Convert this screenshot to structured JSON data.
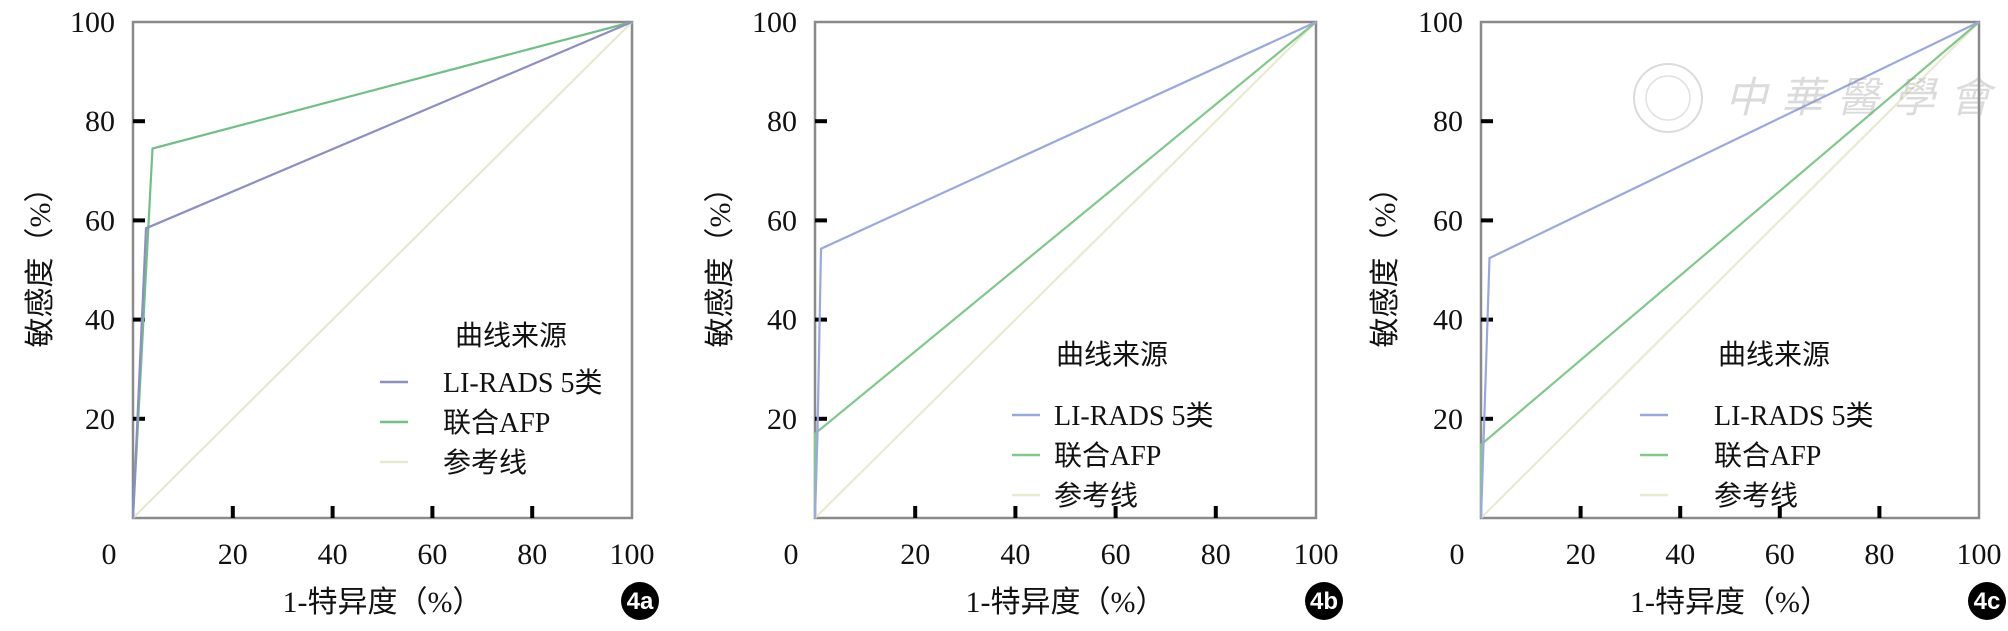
{
  "chart_data": [
    {
      "type": "line",
      "panel_label": "4a",
      "xlabel": "1-特异度（%）",
      "ylabel": "敏感度（%）",
      "xlim": [
        0,
        100
      ],
      "ylim": [
        0,
        100
      ],
      "xticks": [
        "0",
        "20",
        "40",
        "60",
        "80",
        "100"
      ],
      "yticks": [
        "20",
        "40",
        "60",
        "80",
        "100"
      ],
      "grid": false,
      "legend": {
        "title": "曲线来源",
        "placement": "bottom-right"
      },
      "series": [
        {
          "name": "LI-RADS 5类",
          "color": "#8c8fc4",
          "points": [
            [
              0,
              0
            ],
            [
              2.6,
              58.4
            ],
            [
              100,
              100
            ]
          ]
        },
        {
          "name": "联合AFP",
          "color": "#6fbf86",
          "points": [
            [
              0,
              0
            ],
            [
              3.9,
              74.5
            ],
            [
              100,
              100
            ]
          ]
        },
        {
          "name": "参考线",
          "color": "#e6e9cf",
          "points": [
            [
              0,
              0
            ],
            [
              100,
              100
            ]
          ]
        }
      ]
    },
    {
      "type": "line",
      "panel_label": "4b",
      "xlabel": "1-特异度（%）",
      "ylabel": "敏感度（%）",
      "xlim": [
        0,
        100
      ],
      "ylim": [
        0,
        100
      ],
      "xticks": [
        "0",
        "20",
        "40",
        "60",
        "80",
        "100"
      ],
      "yticks": [
        "20",
        "40",
        "60",
        "80",
        "100"
      ],
      "grid": false,
      "legend": {
        "title": "曲线来源",
        "placement": "bottom-right"
      },
      "series": [
        {
          "name": "LI-RADS 5类",
          "color": "#9aa8de",
          "points": [
            [
              0,
              0
            ],
            [
              0.5,
              17
            ],
            [
              1.2,
              54.3
            ],
            [
              100,
              100
            ]
          ]
        },
        {
          "name": "联合AFP",
          "color": "#80c98a",
          "points": [
            [
              0,
              0
            ],
            [
              0,
              17
            ],
            [
              100,
              100
            ]
          ]
        },
        {
          "name": "参考线",
          "color": "#e8ebcf",
          "points": [
            [
              0,
              0
            ],
            [
              100,
              100
            ]
          ]
        }
      ]
    },
    {
      "type": "line",
      "panel_label": "4c",
      "xlabel": "1-特异度（%）",
      "ylabel": "敏感度（%）",
      "xlim": [
        0,
        100
      ],
      "ylim": [
        0,
        100
      ],
      "xticks": [
        "0",
        "20",
        "40",
        "60",
        "80",
        "100"
      ],
      "yticks": [
        "20",
        "40",
        "60",
        "80",
        "100"
      ],
      "grid": false,
      "legend": {
        "title": "曲线来源",
        "placement": "bottom-right"
      },
      "series": [
        {
          "name": "LI-RADS 5类",
          "color": "#9aa8de",
          "points": [
            [
              0,
              0
            ],
            [
              0.5,
              15
            ],
            [
              1.7,
              52.4
            ],
            [
              100,
              100
            ]
          ]
        },
        {
          "name": "联合AFP",
          "color": "#80c98a",
          "points": [
            [
              0,
              0
            ],
            [
              0,
              14.8
            ],
            [
              100,
              100
            ]
          ]
        },
        {
          "name": "参考线",
          "color": "#e8ebcf",
          "points": [
            [
              0,
              0
            ],
            [
              100,
              100
            ]
          ]
        }
      ]
    }
  ],
  "watermark": {
    "text": "中華醫學會"
  }
}
